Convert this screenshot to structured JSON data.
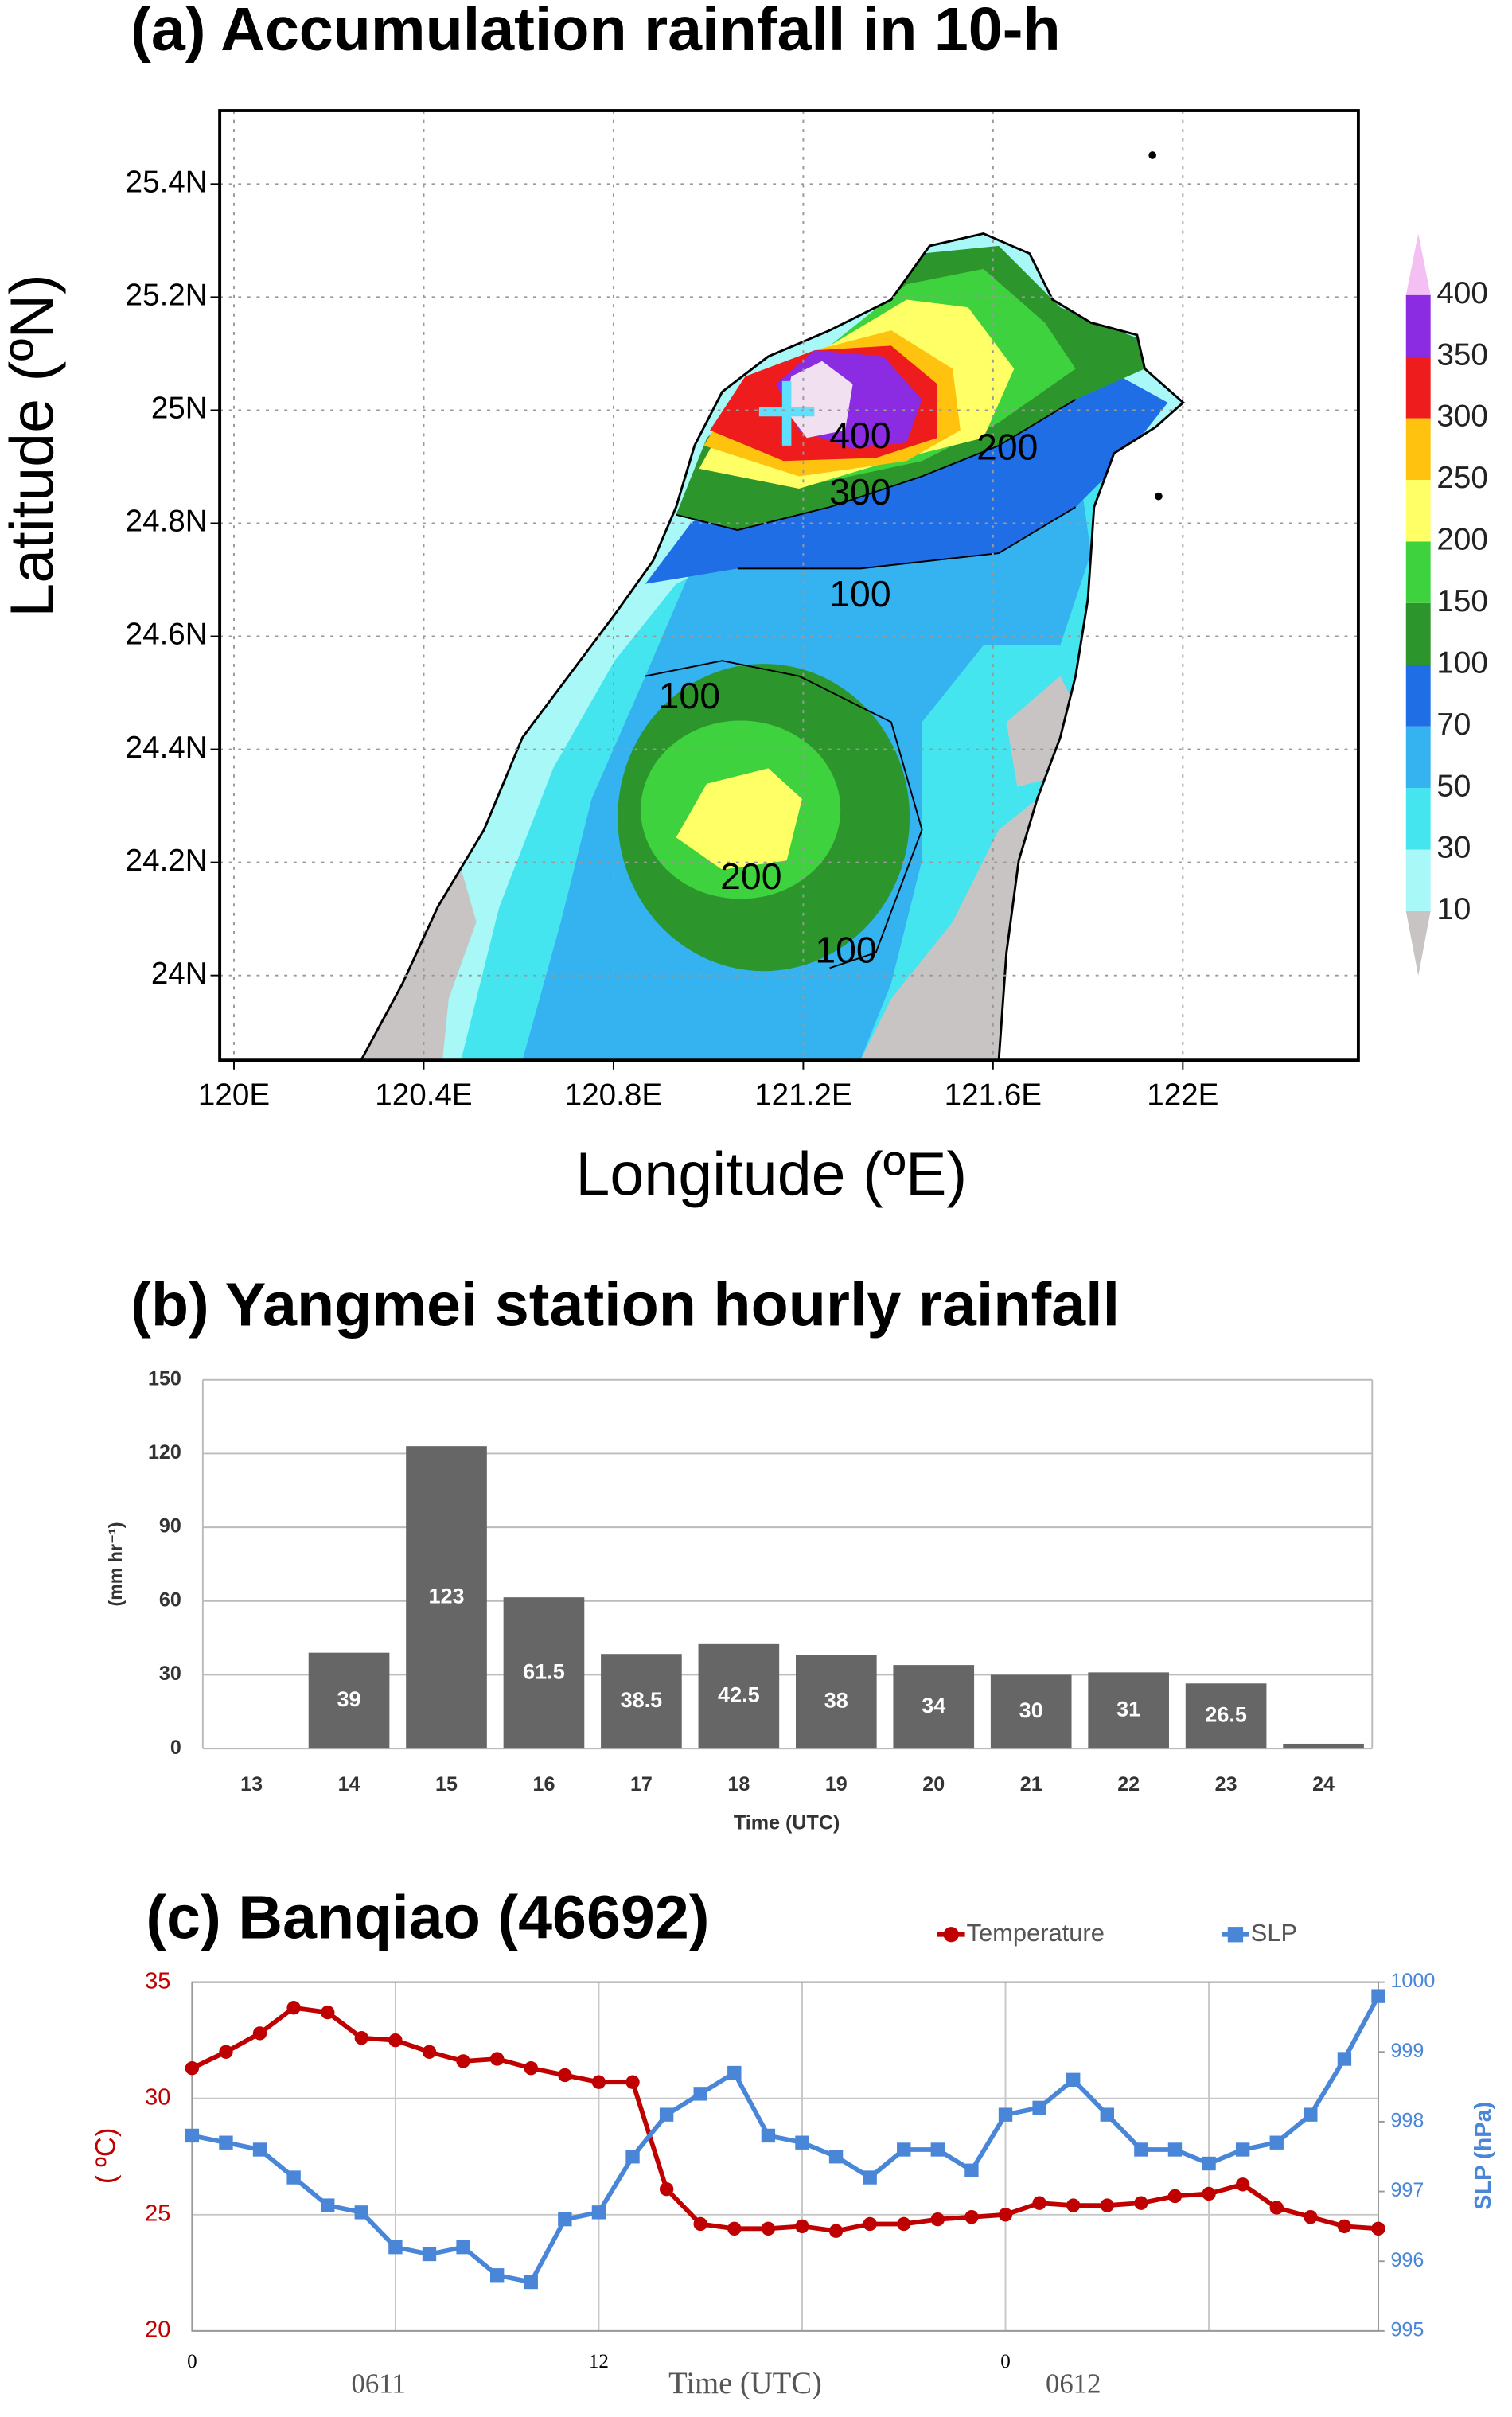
{
  "chart_data": [
    {
      "type": "contour",
      "title": "(a) Accumulation rainfall in 10-h",
      "x_label": "Longitude (ºE)",
      "y_label": "Latitude (ºN)",
      "xlim": [
        119.97,
        122.37
      ],
      "xticks": [
        {
          "value": 120,
          "label": "120E"
        },
        {
          "value": 120.4,
          "label": "120.4E"
        },
        {
          "value": 120.8,
          "label": "120.8E"
        },
        {
          "value": 121.2,
          "label": "121.2E"
        },
        {
          "value": 121.6,
          "label": "121.6E"
        },
        {
          "value": 122,
          "label": "122E"
        }
      ],
      "ylim": [
        23.85,
        25.53
      ],
      "yticks": [
        {
          "value": 24,
          "label": "24N"
        },
        {
          "value": 24.2,
          "label": "24.2N"
        },
        {
          "value": 24.4,
          "label": "24.4N"
        },
        {
          "value": 24.6,
          "label": "24.6N"
        },
        {
          "value": 24.8,
          "label": "24.8N"
        },
        {
          "value": 25,
          "label": "25N"
        },
        {
          "value": 25.2,
          "label": "25.2N"
        },
        {
          "value": 25.4,
          "label": "25.4N"
        }
      ],
      "grid": true,
      "colorbar": {
        "levels": [
          10,
          30,
          50,
          70,
          100,
          150,
          200,
          250,
          300,
          350,
          400
        ],
        "colors": [
          "#c8c4c4",
          "#a8f8f8",
          "#45e5f0",
          "#35b2f0",
          "#1f6ee6",
          "#2c962c",
          "#3ed23e",
          "#ffff66",
          "#ffc20e",
          "#ee1c1c",
          "#8b2be2",
          "#f4c0f4"
        ]
      },
      "contour_labels": [
        {
          "value": 400,
          "lon": 121.32,
          "lat": 24.95
        },
        {
          "value": 200,
          "lon": 121.63,
          "lat": 24.93
        },
        {
          "value": 300,
          "lon": 121.32,
          "lat": 24.85
        },
        {
          "value": 100,
          "lon": 121.32,
          "lat": 24.67
        },
        {
          "value": 100,
          "lon": 120.96,
          "lat": 24.49
        },
        {
          "value": 200,
          "lon": 121.09,
          "lat": 24.17
        },
        {
          "value": 100,
          "lon": 121.29,
          "lat": 24.04
        }
      ]
    },
    {
      "type": "bar",
      "title": "(b) Yangmei station hourly rainfall",
      "x_label": "Time (UTC)",
      "y_label": "(mm hr⁻¹)",
      "categories": [
        "13",
        "14",
        "15",
        "16",
        "17",
        "18",
        "19",
        "20",
        "21",
        "22",
        "23",
        "24"
      ],
      "values": [
        0,
        39,
        123,
        61.5,
        38.5,
        42.5,
        38,
        34,
        30,
        31,
        26.5,
        2
      ],
      "color": "#666666",
      "ylim": [
        0,
        150
      ],
      "yticks": [
        0,
        30,
        60,
        90,
        120,
        150
      ],
      "grid": true
    },
    {
      "type": "line",
      "title": "(c) Banqiao (46692)",
      "x_label": "Time (UTC)",
      "y_label": "( ºC)",
      "y2_label": "SLP (hPa)",
      "x": [
        0,
        1,
        2,
        3,
        4,
        5,
        6,
        7,
        8,
        9,
        10,
        11,
        12,
        13,
        14,
        15,
        16,
        17,
        18,
        19,
        20,
        21,
        22,
        23,
        24,
        25,
        26,
        27,
        28,
        29,
        30,
        31,
        32,
        33,
        34,
        35
      ],
      "xlim": [
        0,
        35
      ],
      "xticks": [
        0,
        12,
        {
          "value": 24,
          "label": "0"
        }
      ],
      "xgrid": [
        0,
        6,
        12,
        18,
        24,
        30
      ],
      "annotations": [
        {
          "text": "0611",
          "x": 5.5
        },
        {
          "text": "0612",
          "x": 26
        }
      ],
      "ylim": [
        20,
        35
      ],
      "yticks": [
        20,
        25,
        30,
        35
      ],
      "y2lim": [
        995,
        1000
      ],
      "y2ticks": [
        995,
        996,
        997,
        998,
        999,
        1000
      ],
      "grid": true,
      "legend": "top-right",
      "series": [
        {
          "name": "Temperature",
          "color": "#c00000",
          "marker": "circle",
          "values": [
            31.3,
            32.0,
            32.8,
            33.9,
            33.7,
            32.6,
            32.5,
            32.0,
            31.6,
            31.7,
            31.3,
            31.0,
            30.7,
            30.7,
            26.1,
            24.6,
            24.4,
            24.4,
            24.5,
            24.3,
            24.6,
            24.6,
            24.8,
            24.9,
            25.0,
            25.5,
            25.4,
            25.4,
            25.5,
            25.8,
            25.9,
            26.3,
            25.3,
            24.9,
            24.5,
            24.4
          ]
        },
        {
          "name": "SLP",
          "color": "#4a86d8",
          "marker": "square",
          "axis": "y2",
          "values": [
            997.8,
            997.7,
            997.6,
            997.2,
            996.8,
            996.7,
            996.2,
            996.1,
            996.2,
            995.8,
            995.7,
            996.6,
            996.7,
            997.5,
            998.1,
            998.4,
            998.7,
            997.8,
            997.7,
            997.5,
            997.2,
            997.6,
            997.6,
            997.3,
            998.1,
            998.2,
            998.6,
            998.1,
            997.6,
            997.6,
            997.4,
            997.6,
            997.7,
            998.1,
            998.9,
            999.8
          ]
        }
      ]
    }
  ]
}
